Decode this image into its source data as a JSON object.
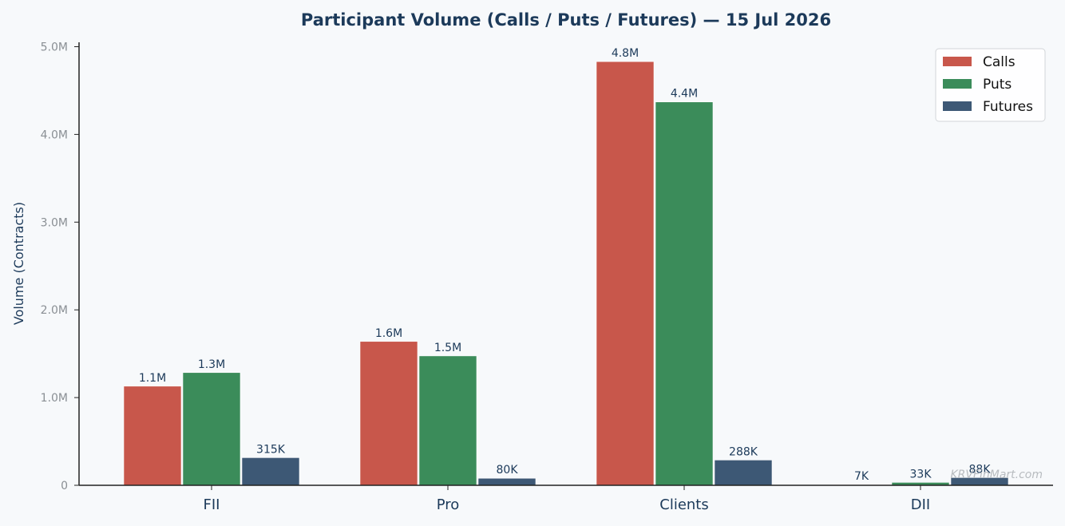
{
  "chart_data": {
    "type": "bar",
    "title": "Participant Volume (Calls / Puts / Futures) — 15 Jul 2026",
    "xlabel": "",
    "ylabel": "Volume (Contracts)",
    "categories": [
      "FII",
      "Pro",
      "Clients",
      "DII"
    ],
    "ylim": [
      0,
      5050000
    ],
    "yticks": [
      0,
      1000000,
      2000000,
      3000000,
      4000000,
      5000000
    ],
    "ytick_labels": [
      "0",
      "1.0M",
      "2.0M",
      "3.0M",
      "4.0M",
      "5.0M"
    ],
    "series": [
      {
        "name": "Calls",
        "color": "#c8574b",
        "values": [
          1130000,
          1640000,
          4830000,
          7000
        ],
        "labels": [
          "1.1M",
          "1.6M",
          "4.8M",
          "7K"
        ]
      },
      {
        "name": "Puts",
        "color": "#3b8c5a",
        "values": [
          1285000,
          1475000,
          4370000,
          33000
        ],
        "labels": [
          "1.3M",
          "1.5M",
          "4.4M",
          "33K"
        ]
      },
      {
        "name": "Futures",
        "color": "#3d5875",
        "values": [
          315000,
          80000,
          288000,
          88000
        ],
        "labels": [
          "315K",
          "80K",
          "288K",
          "88K"
        ]
      }
    ],
    "grid": false,
    "legend_position": "top-right"
  },
  "watermark": "KRVFinMart.com"
}
